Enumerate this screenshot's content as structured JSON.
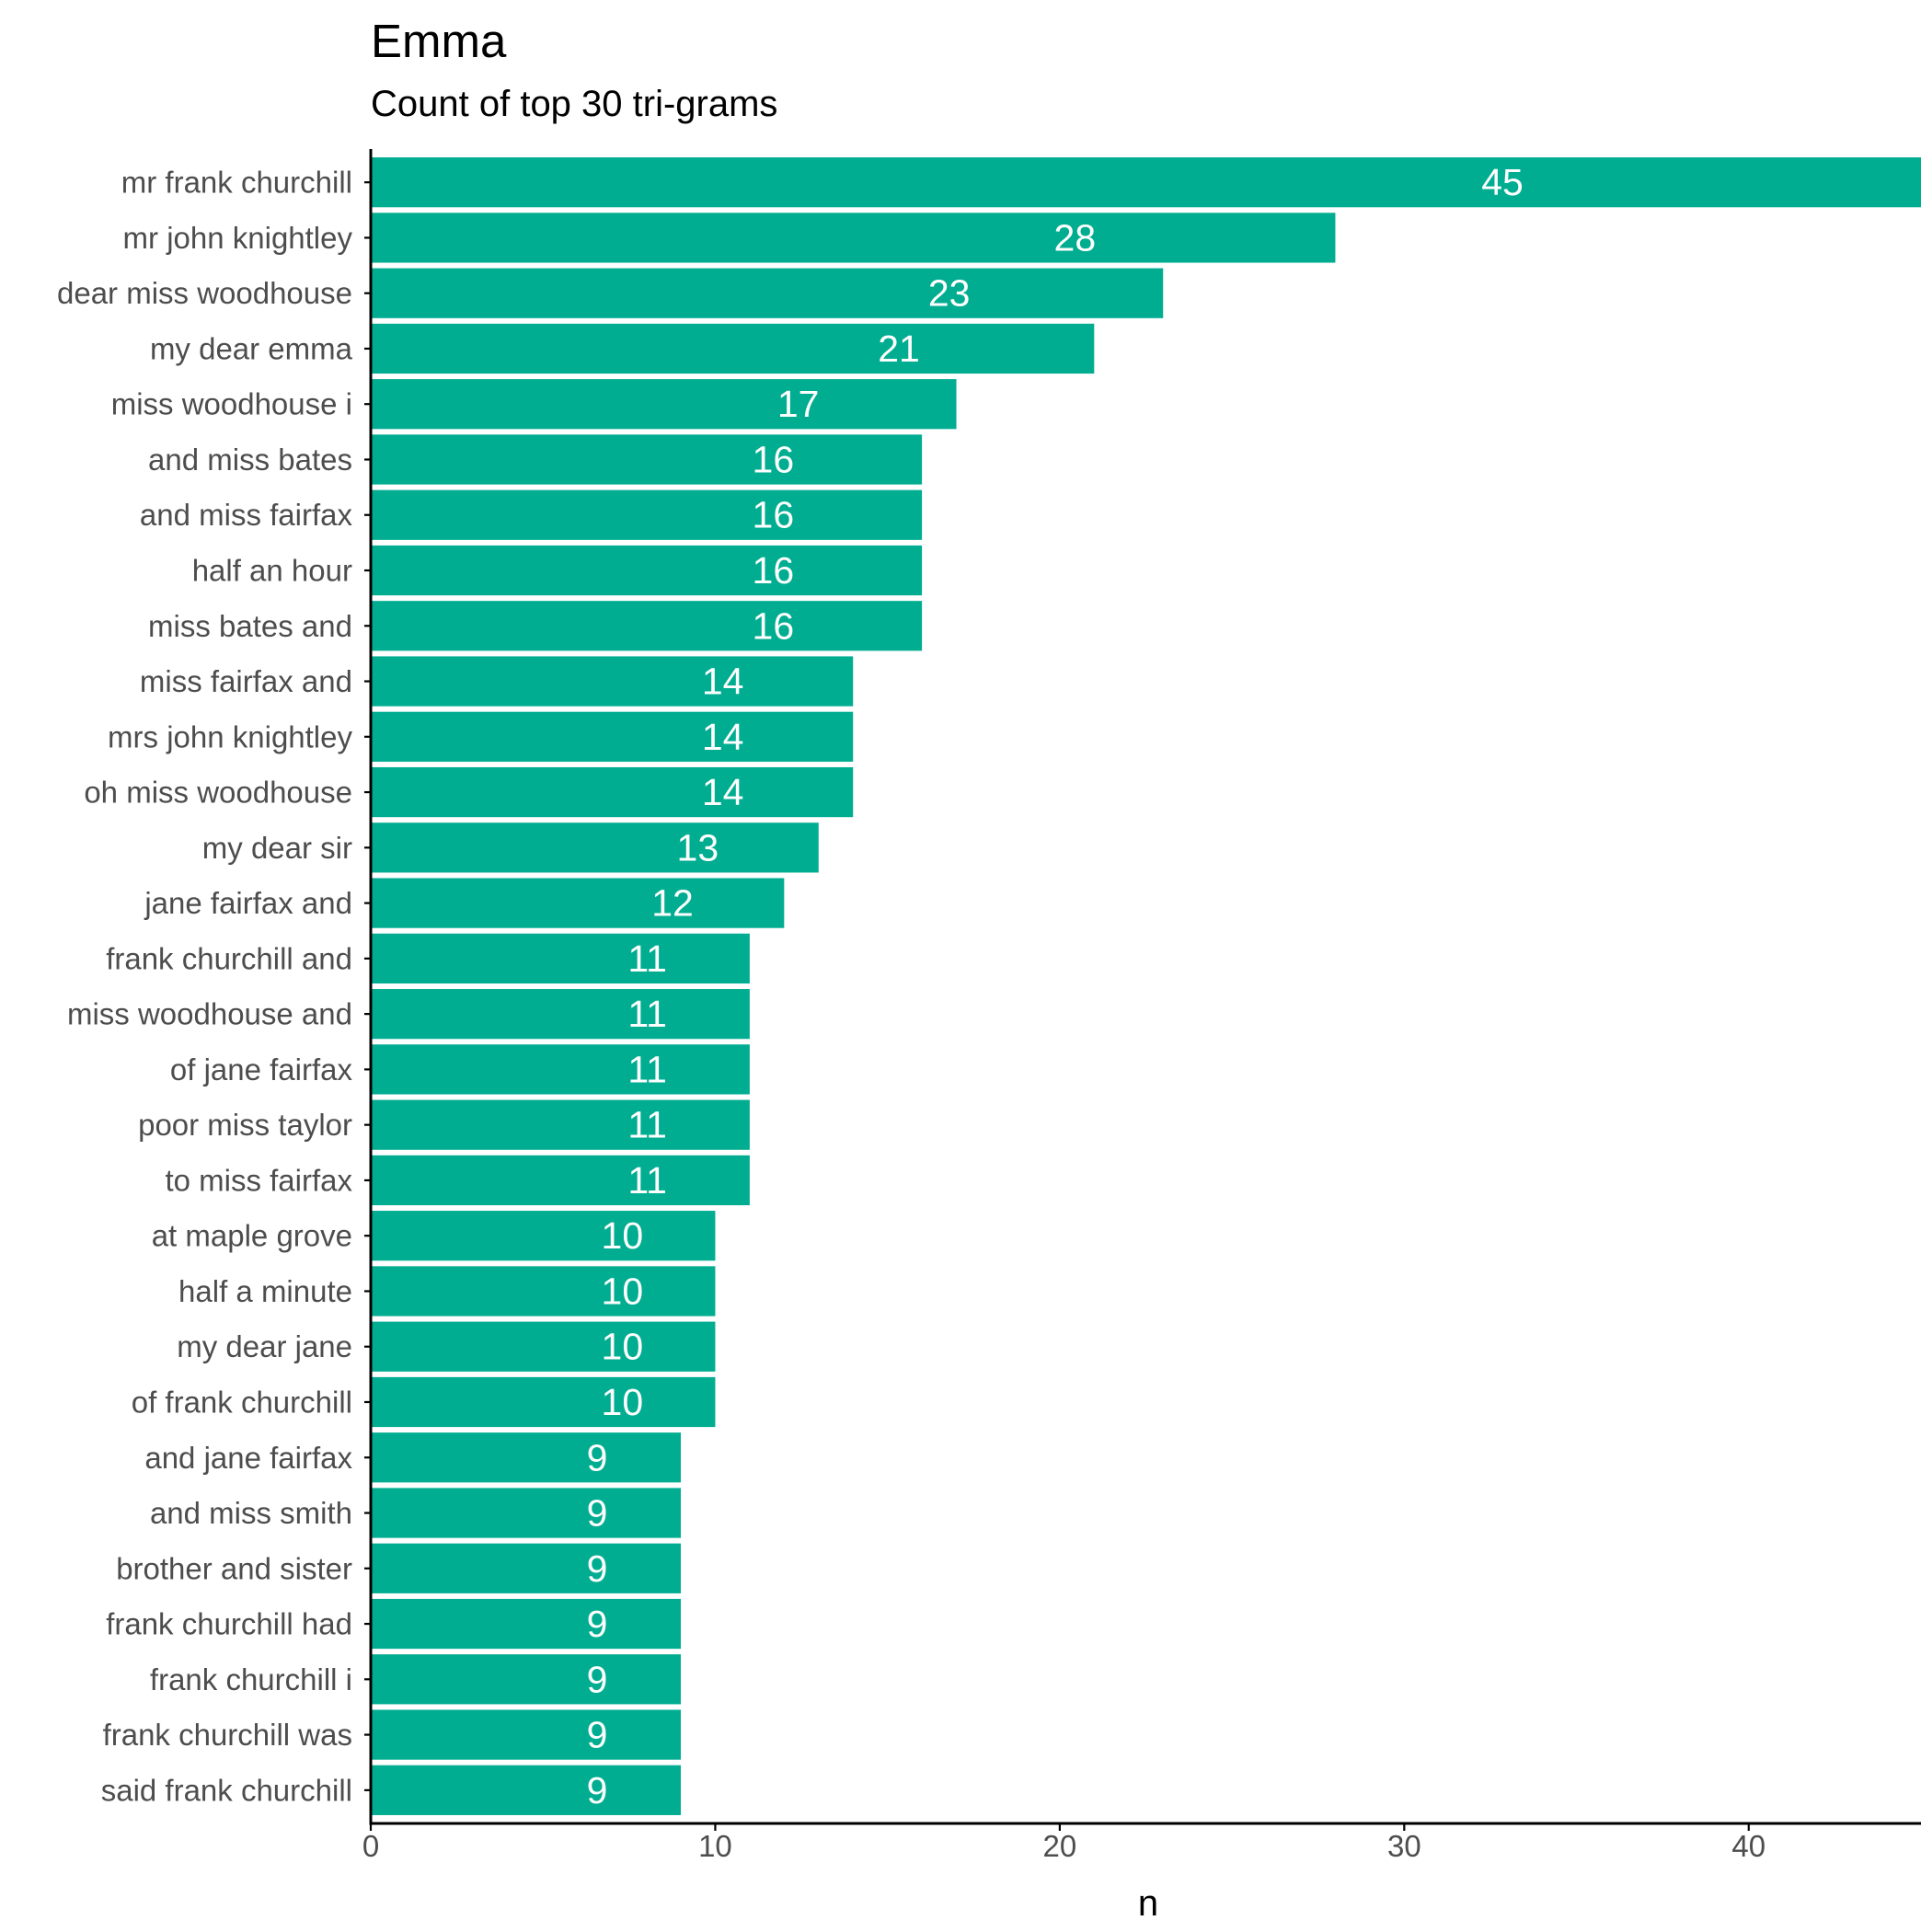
{
  "chart_data": {
    "type": "bar",
    "orientation": "horizontal",
    "title": "Emma",
    "subtitle": "Count of top 30 tri-grams",
    "xlabel": "n",
    "ylabel": "",
    "xlim": [
      0,
      45
    ],
    "x_ticks": [
      0,
      10,
      20,
      30,
      40
    ],
    "grid": false,
    "bar_color": "#00AD91",
    "label_color": "#FFFFFF",
    "categories": [
      "mr frank churchill",
      "mr john knightley",
      "dear miss woodhouse",
      "my dear emma",
      "miss woodhouse i",
      "and miss bates",
      "and miss fairfax",
      "half an hour",
      "miss bates and",
      "miss fairfax and",
      "mrs john knightley",
      "oh miss woodhouse",
      "my dear sir",
      "jane fairfax and",
      "frank churchill and",
      "miss woodhouse and",
      "of jane fairfax",
      "poor miss taylor",
      "to miss fairfax",
      "at maple grove",
      "half a minute",
      "my dear jane",
      "of frank churchill",
      "and jane fairfax",
      "and miss smith",
      "brother and sister",
      "frank churchill had",
      "frank churchill i",
      "frank churchill was",
      "said frank churchill"
    ],
    "values": [
      45,
      28,
      23,
      21,
      17,
      16,
      16,
      16,
      16,
      14,
      14,
      14,
      13,
      12,
      11,
      11,
      11,
      11,
      11,
      10,
      10,
      10,
      10,
      9,
      9,
      9,
      9,
      9,
      9,
      9
    ]
  }
}
